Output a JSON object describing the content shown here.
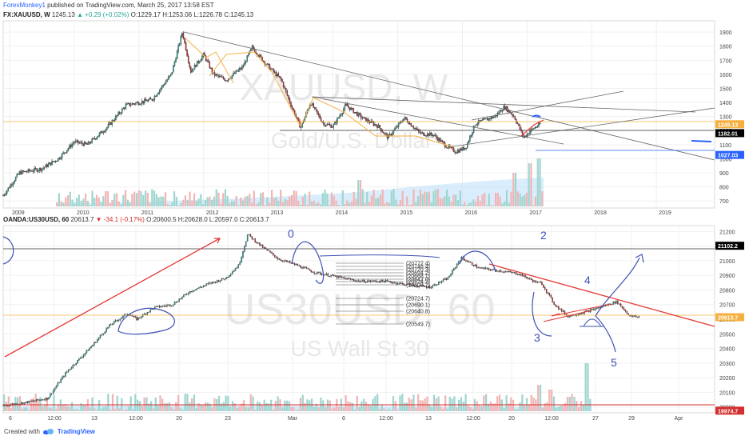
{
  "publisher": {
    "user": "ForexMonkey1",
    "text": "published on TradingView.com, March 25, 2017 13:58 EST"
  },
  "top": {
    "symbol": "FX:XAUUSD, W",
    "last": "1245.13",
    "change": "+0.29 (+0.02%)",
    "o_label": "O:",
    "o": "1229.17",
    "h_label": "H:",
    "h": "1253.06",
    "l_label": "L:",
    "l": "1226.78",
    "c_label": "C:",
    "c": "1245.13",
    "watermark_big": "XAUUSD, W",
    "watermark_small": "Gold/U.S. Dollar"
  },
  "bottom": {
    "symbol": "OANDA:US30USD, 60",
    "last": "20613.7",
    "change": "-34.1 (-0.17%)",
    "o_label": "O:",
    "o": "20600.5",
    "h_label": "H:",
    "h": "20628.0",
    "l_label": "L:",
    "l": "20597.0",
    "c_label": "C:",
    "c": "20613.7",
    "watermark_big": "US30USD, 60",
    "watermark_small": "US Wall St 30"
  },
  "footer": {
    "created": "Created with",
    "brand": "TradingView"
  },
  "colors": {
    "up": "#26a69a",
    "down": "#d32f2f",
    "drawing": "#3f51b5",
    "trend_red": "#e53935",
    "fib": "#f5b041",
    "price_line": "#f5b041"
  },
  "chart_data": [
    {
      "type": "candlestick",
      "title": "FX:XAUUSD, W",
      "ylim": [
        650,
        1980
      ],
      "y_ticks": [
        700,
        800,
        900,
        1000,
        1100,
        1200,
        1300,
        1400,
        1500,
        1600,
        1700,
        1800,
        1900
      ],
      "x_ticks": [
        "2009",
        "2010",
        "2011",
        "2012",
        "2013",
        "2014",
        "2015",
        "2016",
        "2017",
        "2018",
        "2019"
      ],
      "price_labels": [
        {
          "value": 1245.13,
          "text": "1245.13",
          "color": "#f5b041"
        },
        {
          "value": 1182.01,
          "text": "1182.01",
          "color": "#000000"
        },
        {
          "value": 1027.03,
          "text": "1027.03",
          "color": "#2962ff"
        }
      ],
      "path": [
        [
          2008.9,
          740
        ],
        [
          2009.15,
          900
        ],
        [
          2009.5,
          930
        ],
        [
          2009.75,
          1000
        ],
        [
          2010.0,
          1120
        ],
        [
          2010.2,
          1100
        ],
        [
          2010.5,
          1220
        ],
        [
          2010.8,
          1380
        ],
        [
          2011.2,
          1420
        ],
        [
          2011.5,
          1600
        ],
        [
          2011.67,
          1900
        ],
        [
          2011.8,
          1620
        ],
        [
          2012.0,
          1740
        ],
        [
          2012.15,
          1600
        ],
        [
          2012.35,
          1560
        ],
        [
          2012.6,
          1650
        ],
        [
          2012.75,
          1790
        ],
        [
          2012.95,
          1680
        ],
        [
          2013.2,
          1560
        ],
        [
          2013.35,
          1380
        ],
        [
          2013.5,
          1220
        ],
        [
          2013.65,
          1400
        ],
        [
          2013.85,
          1250
        ],
        [
          2014.0,
          1230
        ],
        [
          2014.2,
          1380
        ],
        [
          2014.45,
          1290
        ],
        [
          2014.7,
          1230
        ],
        [
          2014.85,
          1150
        ],
        [
          2015.1,
          1290
        ],
        [
          2015.35,
          1180
        ],
        [
          2015.55,
          1170
        ],
        [
          2015.75,
          1090
        ],
        [
          2015.9,
          1050
        ],
        [
          2016.05,
          1080
        ],
        [
          2016.2,
          1250
        ],
        [
          2016.5,
          1300
        ],
        [
          2016.65,
          1370
        ],
        [
          2016.8,
          1300
        ],
        [
          2016.95,
          1150
        ],
        [
          2017.05,
          1200
        ],
        [
          2017.2,
          1245
        ]
      ]
    },
    {
      "type": "candlestick",
      "title": "OANDA:US30USD, 60",
      "ylim": [
        19960,
        21240
      ],
      "y_ticks": [
        20000,
        20100,
        20200,
        20300,
        20400,
        20500,
        20600,
        20700,
        20800,
        20900,
        21000,
        21100,
        21200
      ],
      "x_ticks": [
        "6",
        "12:00",
        "13",
        "12:00",
        "20",
        "23",
        "Mar",
        "6",
        "12:00",
        "13",
        "12:00",
        "20",
        "12:00",
        "27",
        "29",
        "Apr"
      ],
      "price_labels": [
        {
          "value": 21102.2,
          "text": "21102.2",
          "color": "#000000"
        },
        {
          "value": 20613.7,
          "text": "20613.7",
          "color": "#f5b041"
        },
        {
          "value": 19974.7,
          "text": "19974.7",
          "color": "#d32f2f"
        }
      ],
      "fib_labels": [
        "(20772.4)",
        "(20746.4)",
        "(20720.3)",
        "(20694.2)",
        "(20668.1)",
        "(20642.0)",
        "(20624.2)",
        "(20603.7)",
        "(20724.7)",
        "(20690.1)",
        "(20640.8)",
        "(20549.7)"
      ],
      "annotations": [
        "0",
        "2",
        "3",
        "4",
        "5"
      ],
      "path": [
        [
          0.0,
          20010
        ],
        [
          0.05,
          20030
        ],
        [
          0.1,
          20060
        ],
        [
          0.14,
          20230
        ],
        [
          0.2,
          20420
        ],
        [
          0.24,
          20560
        ],
        [
          0.28,
          20640
        ],
        [
          0.3,
          20600
        ],
        [
          0.34,
          20680
        ],
        [
          0.38,
          20700
        ],
        [
          0.42,
          20790
        ],
        [
          0.46,
          20840
        ],
        [
          0.5,
          20880
        ],
        [
          0.53,
          20970
        ],
        [
          0.55,
          21180
        ],
        [
          0.58,
          21100
        ],
        [
          0.62,
          21010
        ],
        [
          0.66,
          20970
        ],
        [
          0.7,
          20920
        ],
        [
          0.75,
          20890
        ],
        [
          0.8,
          20860
        ],
        [
          0.86,
          20860
        ],
        [
          0.92,
          20830
        ],
        [
          0.96,
          20820
        ],
        [
          1.0,
          20880
        ],
        [
          1.03,
          21020
        ],
        [
          1.07,
          20950
        ],
        [
          1.12,
          20930
        ],
        [
          1.16,
          20910
        ],
        [
          1.2,
          20850
        ],
        [
          1.21,
          20850
        ],
        [
          1.24,
          20700
        ],
        [
          1.27,
          20620
        ],
        [
          1.31,
          20650
        ],
        [
          1.35,
          20690
        ],
        [
          1.38,
          20720
        ],
        [
          1.41,
          20620
        ],
        [
          1.43,
          20615
        ]
      ]
    }
  ]
}
